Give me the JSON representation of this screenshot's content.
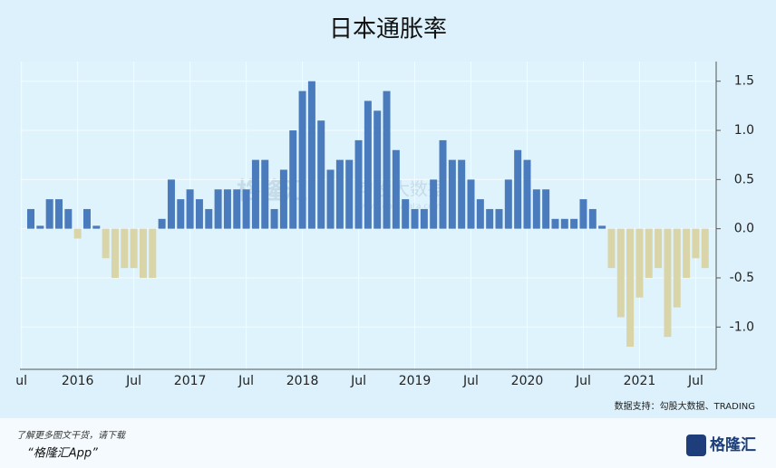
{
  "chart_data": {
    "type": "bar",
    "title": "日本通胀率",
    "values": [
      0.2,
      0.03,
      0.3,
      0.3,
      0.2,
      -0.1,
      0.2,
      0.03,
      -0.3,
      -0.5,
      -0.4,
      -0.4,
      -0.5,
      -0.5,
      0.1,
      0.5,
      0.3,
      0.4,
      0.3,
      0.2,
      0.4,
      0.4,
      0.4,
      0.4,
      0.7,
      0.7,
      0.2,
      0.6,
      1.0,
      1.4,
      1.5,
      1.1,
      0.6,
      0.7,
      0.7,
      0.9,
      1.3,
      1.2,
      1.4,
      0.8,
      0.3,
      0.2,
      0.2,
      0.5,
      0.9,
      0.7,
      0.7,
      0.5,
      0.3,
      0.2,
      0.2,
      0.5,
      0.8,
      0.7,
      0.4,
      0.4,
      0.1,
      0.1,
      0.1,
      0.3,
      0.2,
      0.03,
      -0.4,
      -0.9,
      -1.2,
      -0.7,
      -0.5,
      -0.4,
      -1.1,
      -0.8,
      -0.5,
      -0.3,
      -0.4
    ],
    "positive_color": "#4a7cbd",
    "negative_color": "#d9d5a9",
    "xticks": [
      {
        "value": -1,
        "label": "ul"
      },
      {
        "value": 5,
        "label": "2016"
      },
      {
        "value": 11,
        "label": "Jul"
      },
      {
        "value": 17,
        "label": "2017"
      },
      {
        "value": 23,
        "label": "Jul"
      },
      {
        "value": 29,
        "label": "2018"
      },
      {
        "value": 35,
        "label": "Jul"
      },
      {
        "value": 41,
        "label": "2019"
      },
      {
        "value": 47,
        "label": "Jul"
      },
      {
        "value": 53,
        "label": "2020"
      },
      {
        "value": 59,
        "label": "Jul"
      },
      {
        "value": 65,
        "label": "2021"
      },
      {
        "value": 71,
        "label": "Jul"
      }
    ],
    "ylim": [
      -1.43,
      1.7
    ],
    "yticks": [
      1.5,
      {
        "value": 1.0,
        "label": "1.0"
      },
      0.5,
      {
        "value": 0.0,
        "label": "0.0"
      },
      -0.5,
      {
        "value": -1.0,
        "label": "-1.0"
      }
    ],
    "grid": true,
    "source": "数据支持：勾股大数据、TRADING",
    "watermark": [
      "格隆汇",
      "勾股大数据",
      "www.gogudata.com"
    ]
  },
  "footer": {
    "line1": "了解更多图文干货，请下载",
    "line2": "“格隆汇App”",
    "logo": "格隆汇"
  }
}
